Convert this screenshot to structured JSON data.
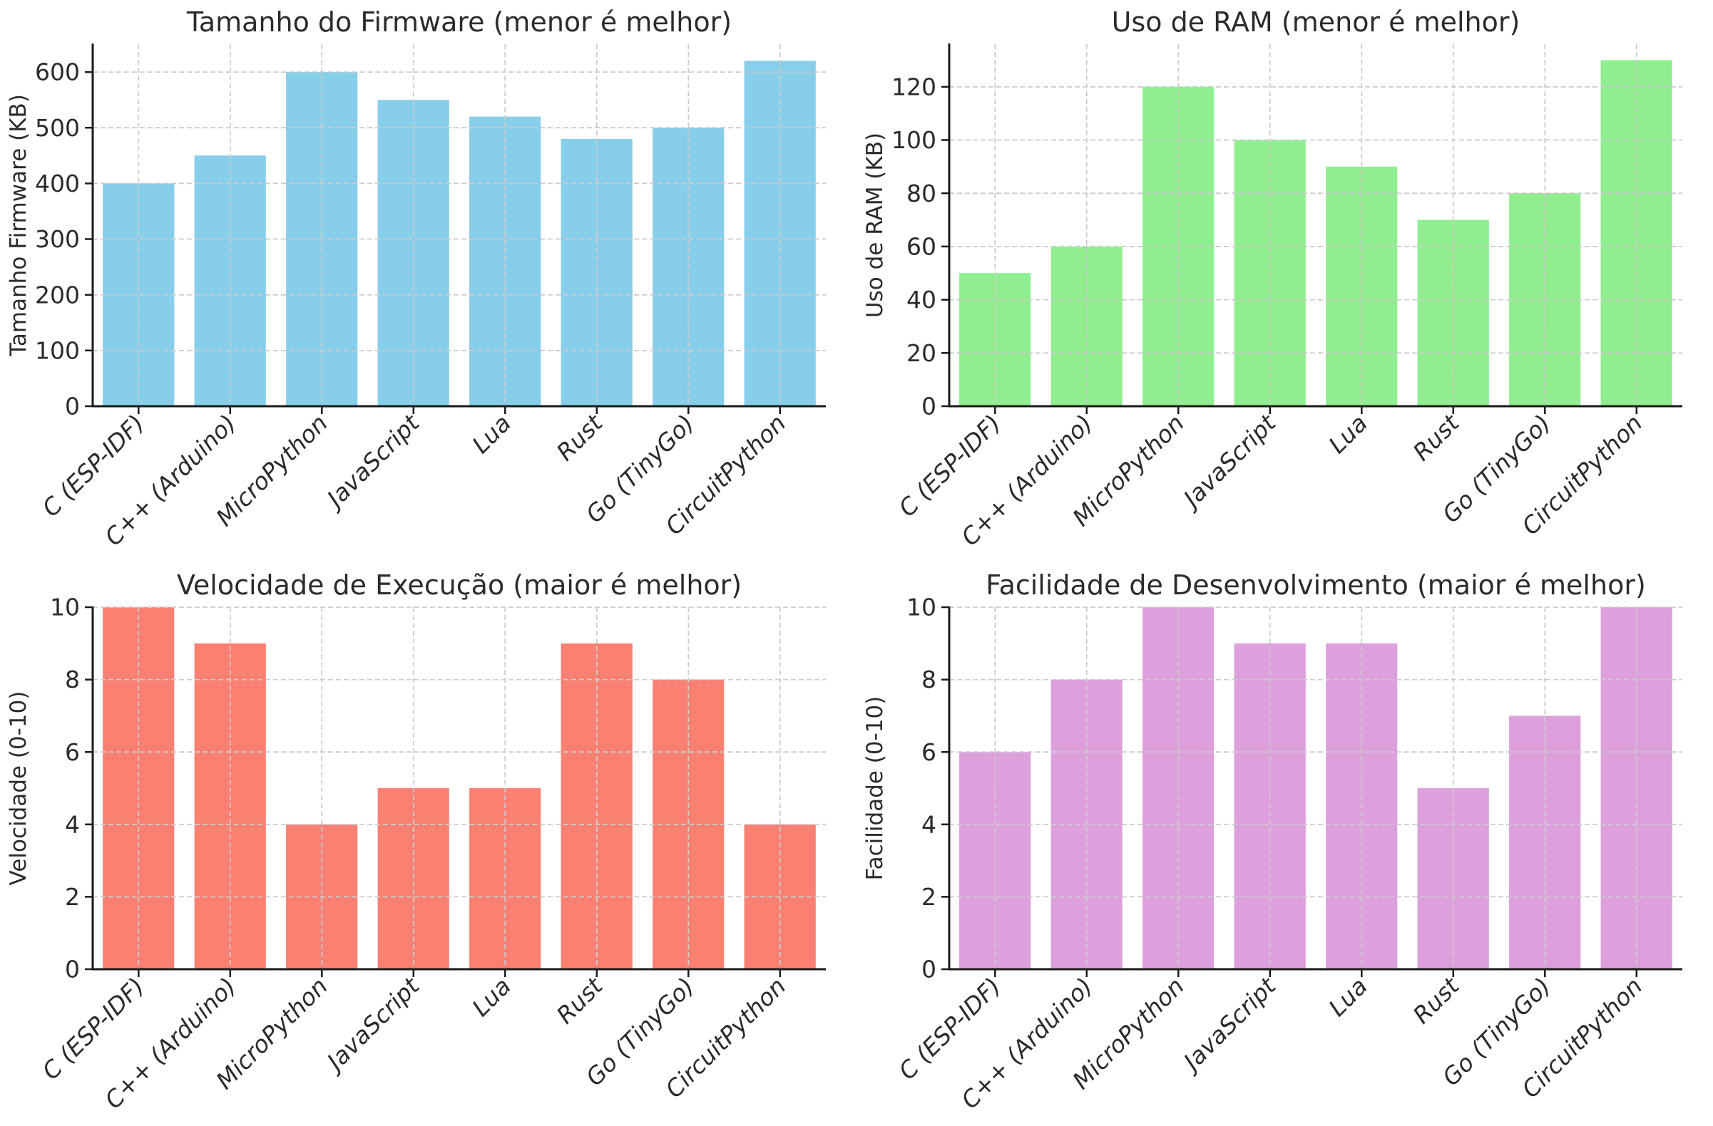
{
  "figure": {
    "background": "#ffffff",
    "text_color": "#2b2b2b",
    "spine_color": "#1a1a1a",
    "grid_color": "#cccccc"
  },
  "chart_data": [
    {
      "type": "bar",
      "title": "Tamanho do Firmware (menor é melhor)",
      "ylabel": "Tamanho Firmware (KB)",
      "xlabel": "",
      "categories": [
        "C (ESP-IDF)",
        "C++ (Arduino)",
        "MicroPython",
        "JavaScript",
        "Lua",
        "Rust",
        "Go (TinyGo)",
        "CircuitPython"
      ],
      "values": [
        400,
        450,
        600,
        550,
        520,
        480,
        500,
        620
      ],
      "ylim": [
        0,
        650
      ],
      "yticks": [
        0,
        100,
        200,
        300,
        400,
        500,
        600
      ],
      "bar_color": "#87CEEB",
      "grid": "dashed, drawn above bars",
      "legend": "none"
    },
    {
      "type": "bar",
      "title": "Uso de RAM (menor é melhor)",
      "ylabel": "Uso de RAM (KB)",
      "xlabel": "",
      "categories": [
        "C (ESP-IDF)",
        "C++ (Arduino)",
        "MicroPython",
        "JavaScript",
        "Lua",
        "Rust",
        "Go (TinyGo)",
        "CircuitPython"
      ],
      "values": [
        50,
        60,
        120,
        100,
        90,
        70,
        80,
        130
      ],
      "ylim": [
        0,
        136
      ],
      "yticks": [
        0,
        20,
        40,
        60,
        80,
        100,
        120
      ],
      "bar_color": "#90EE90",
      "grid": "dashed, drawn above bars",
      "legend": "none"
    },
    {
      "type": "bar",
      "title": "Velocidade de Execução (maior é melhor)",
      "ylabel": "Velocidade (0-10)",
      "xlabel": "",
      "categories": [
        "C (ESP-IDF)",
        "C++ (Arduino)",
        "MicroPython",
        "JavaScript",
        "Lua",
        "Rust",
        "Go (TinyGo)",
        "CircuitPython"
      ],
      "values": [
        10,
        9,
        4,
        5,
        5,
        9,
        8,
        4
      ],
      "ylim": [
        0,
        10
      ],
      "yticks": [
        0,
        2,
        4,
        6,
        8,
        10
      ],
      "bar_color": "#FA8072",
      "grid": "dashed, drawn above bars",
      "legend": "none"
    },
    {
      "type": "bar",
      "title": "Facilidade de Desenvolvimento (maior é melhor)",
      "ylabel": "Facilidade (0-10)",
      "xlabel": "",
      "categories": [
        "C (ESP-IDF)",
        "C++ (Arduino)",
        "MicroPython",
        "JavaScript",
        "Lua",
        "Rust",
        "Go (TinyGo)",
        "CircuitPython"
      ],
      "values": [
        6,
        8,
        10,
        9,
        9,
        5,
        7,
        10
      ],
      "ylim": [
        0,
        10
      ],
      "yticks": [
        0,
        2,
        4,
        6,
        8,
        10
      ],
      "bar_color": "#DDA0DD",
      "grid": "dashed, drawn above bars",
      "legend": "none"
    }
  ]
}
